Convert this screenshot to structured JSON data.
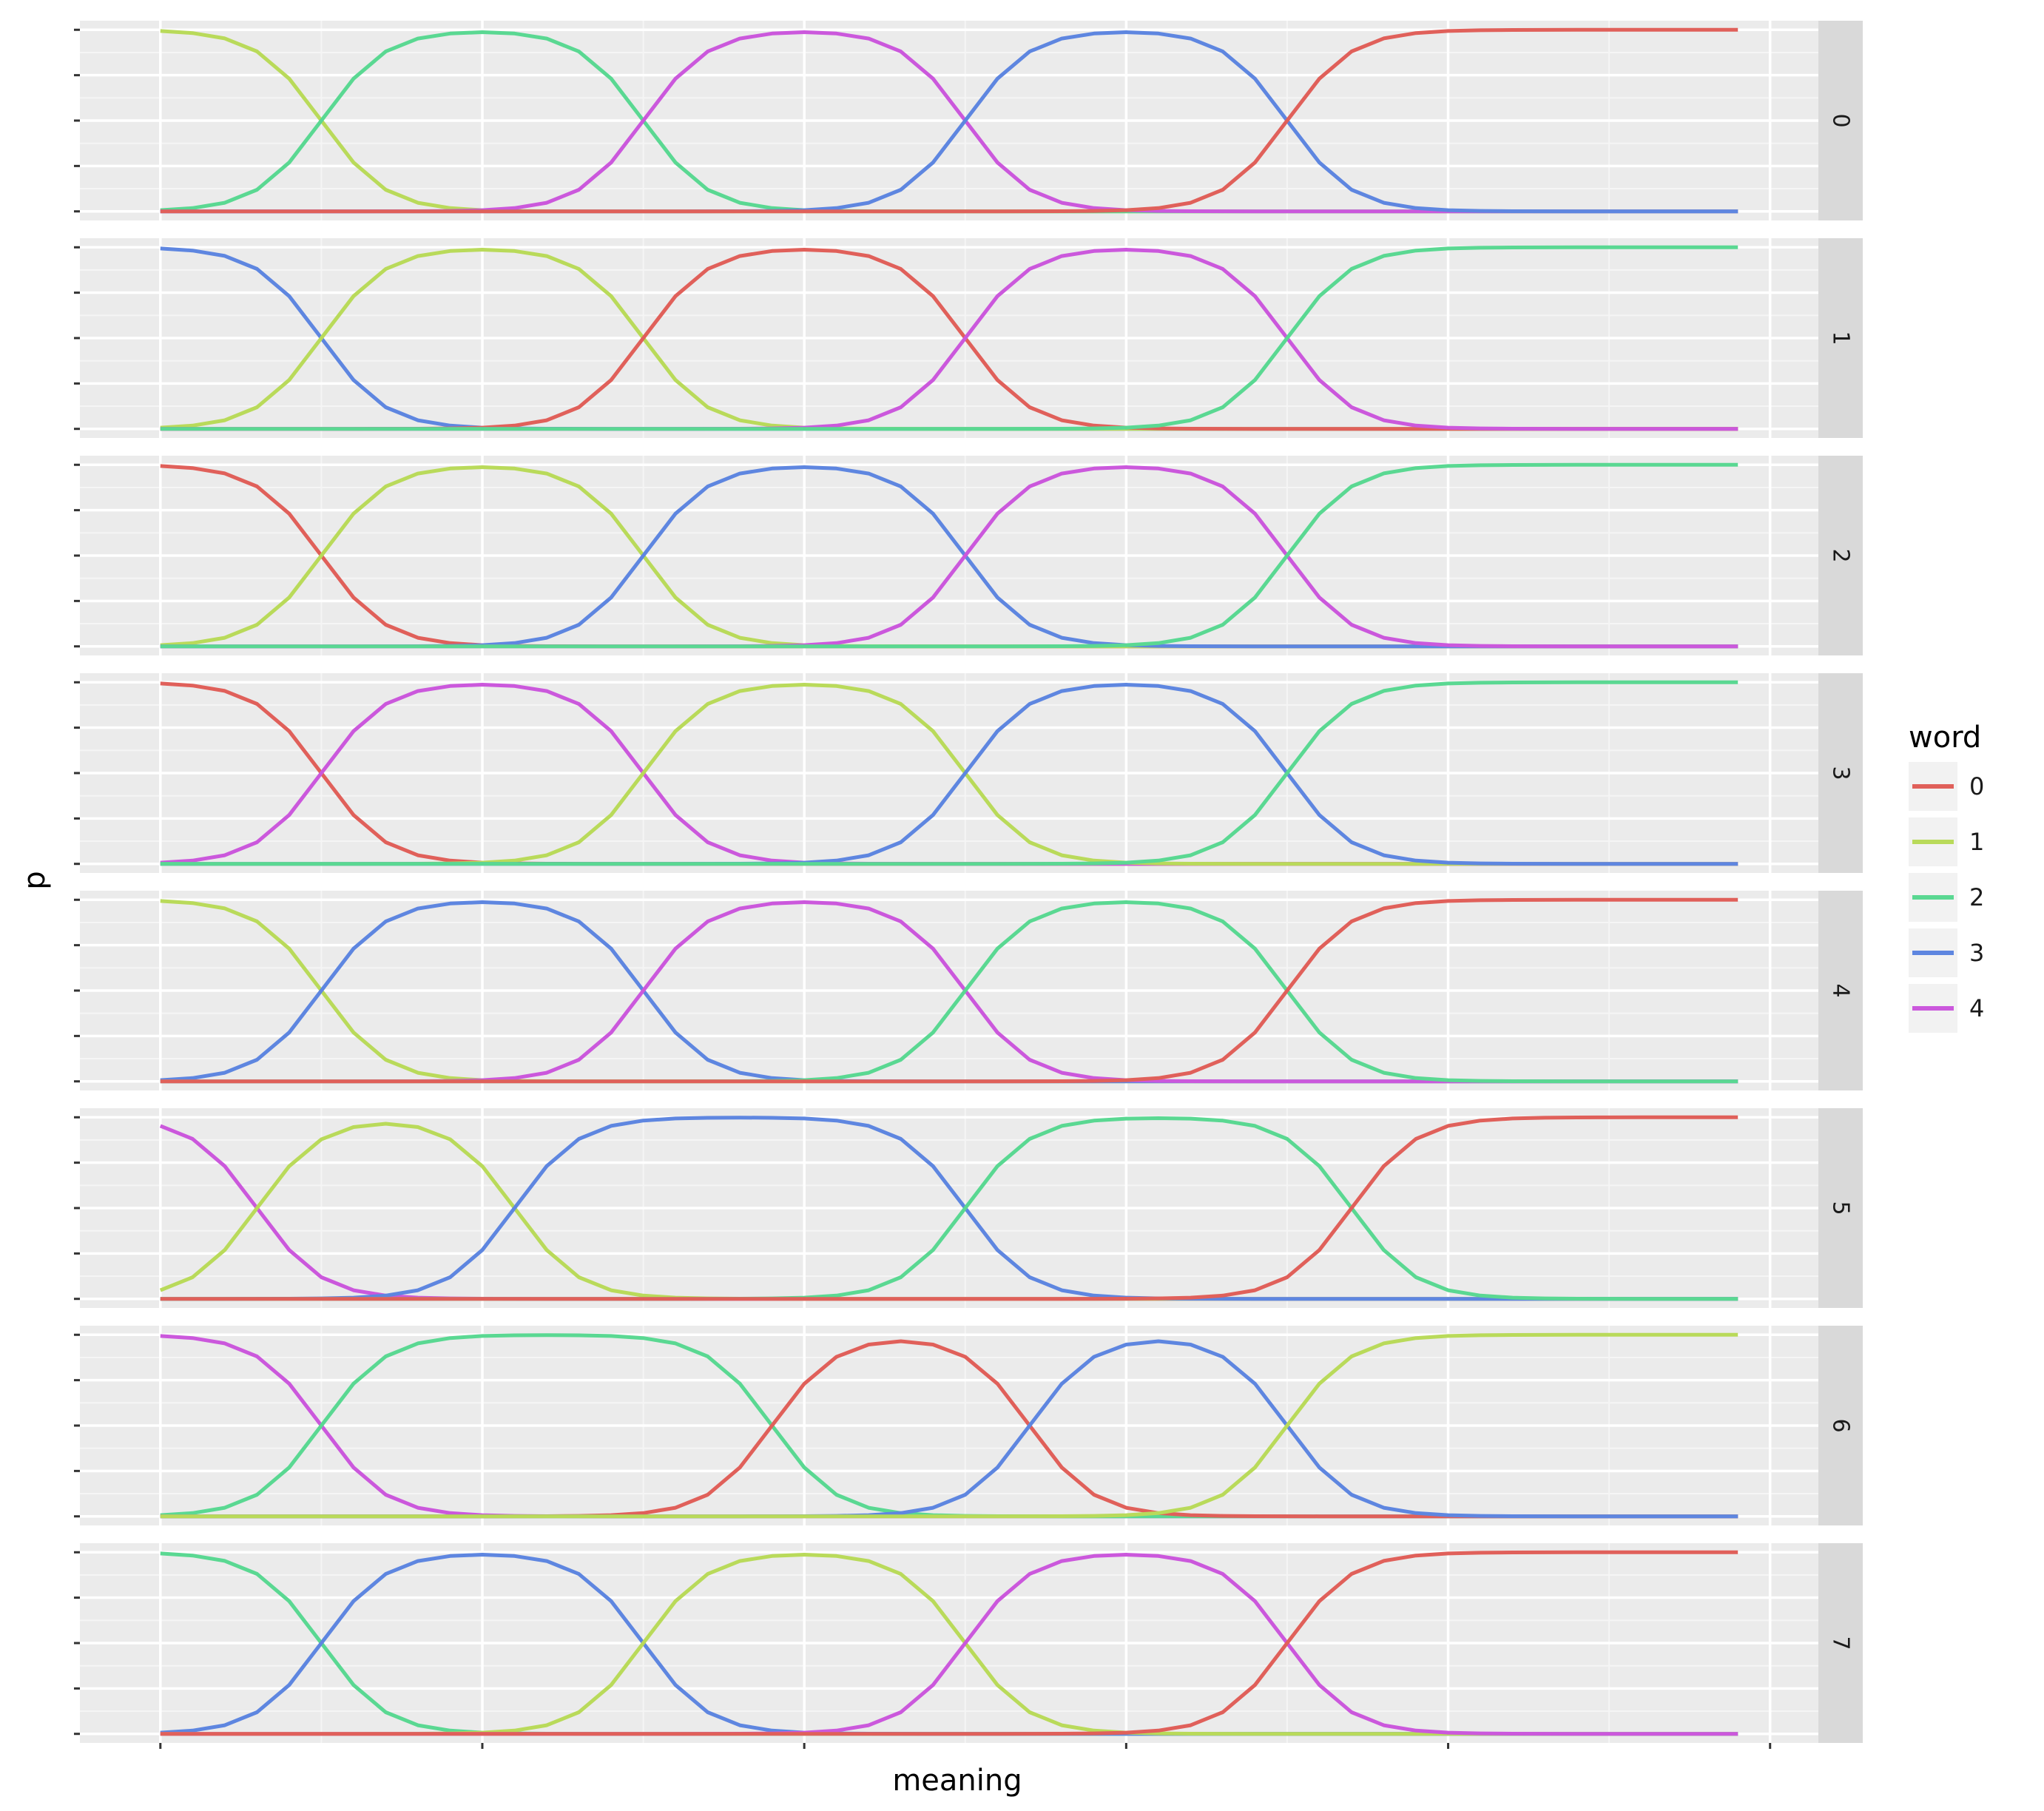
{
  "chart_data": {
    "type": "line",
    "xlabel": "meaning",
    "ylabel": "p",
    "facet_labels": [
      "0",
      "1",
      "2",
      "3",
      "4",
      "5",
      "6",
      "7"
    ],
    "legend": {
      "title": "word",
      "position": "right",
      "entries": [
        {
          "label": "0",
          "color": "#E0605A"
        },
        {
          "label": "1",
          "color": "#B9DA5A"
        },
        {
          "label": "2",
          "color": "#5AD892"
        },
        {
          "label": "3",
          "color": "#5E86E0"
        },
        {
          "label": "4",
          "color": "#CB58DC"
        }
      ]
    },
    "x": [
      0,
      1,
      2,
      3,
      4,
      5,
      6,
      7,
      8,
      9,
      10,
      11,
      12,
      13,
      14,
      15,
      16,
      17,
      18,
      19,
      20,
      21,
      22,
      23,
      24,
      25,
      26,
      27,
      28,
      29,
      30,
      31,
      32,
      33,
      34,
      35,
      36,
      37,
      38,
      39,
      40,
      41,
      42,
      43,
      44,
      45,
      46,
      47,
      48,
      49
    ],
    "xlim": [
      -2.5,
      51.5
    ],
    "ylim": [
      -0.05,
      1.05
    ],
    "grid": true,
    "panels": [
      {
        "facet": "0",
        "series": [
          {
            "word": "1",
            "segments": [
              {
                "from": 0,
                "to": 10,
                "rise": false
              }
            ]
          },
          {
            "word": "2",
            "segments": [
              {
                "from": 0,
                "to": 10,
                "rise": true
              },
              {
                "from": 10,
                "to": 20,
                "rise": false
              }
            ]
          },
          {
            "word": "4",
            "segments": [
              {
                "from": 10,
                "to": 20,
                "rise": true
              },
              {
                "from": 20,
                "to": 30,
                "rise": false
              }
            ]
          },
          {
            "word": "3",
            "segments": [
              {
                "from": 20,
                "to": 30,
                "rise": true
              },
              {
                "from": 30,
                "to": 40,
                "rise": false
              }
            ]
          },
          {
            "word": "0",
            "segments": [
              {
                "from": 30,
                "to": 40,
                "rise": true
              }
            ]
          }
        ]
      },
      {
        "facet": "1",
        "series": [
          {
            "word": "3",
            "segments": [
              {
                "from": 0,
                "to": 10,
                "rise": false
              }
            ]
          },
          {
            "word": "1",
            "segments": [
              {
                "from": 0,
                "to": 10,
                "rise": true
              },
              {
                "from": 10,
                "to": 20,
                "rise": false
              }
            ]
          },
          {
            "word": "0",
            "segments": [
              {
                "from": 10,
                "to": 20,
                "rise": true
              },
              {
                "from": 20,
                "to": 30,
                "rise": false
              }
            ]
          },
          {
            "word": "4",
            "segments": [
              {
                "from": 20,
                "to": 30,
                "rise": true
              },
              {
                "from": 30,
                "to": 40,
                "rise": false
              }
            ]
          },
          {
            "word": "2",
            "segments": [
              {
                "from": 30,
                "to": 40,
                "rise": true
              }
            ]
          }
        ]
      },
      {
        "facet": "2",
        "series": [
          {
            "word": "0",
            "segments": [
              {
                "from": 0,
                "to": 10,
                "rise": false
              }
            ]
          },
          {
            "word": "1",
            "segments": [
              {
                "from": 0,
                "to": 10,
                "rise": true
              },
              {
                "from": 10,
                "to": 20,
                "rise": false
              }
            ]
          },
          {
            "word": "3",
            "segments": [
              {
                "from": 10,
                "to": 20,
                "rise": true
              },
              {
                "from": 20,
                "to": 30,
                "rise": false
              }
            ]
          },
          {
            "word": "4",
            "segments": [
              {
                "from": 20,
                "to": 30,
                "rise": true
              },
              {
                "from": 30,
                "to": 40,
                "rise": false
              }
            ]
          },
          {
            "word": "2",
            "segments": [
              {
                "from": 30,
                "to": 40,
                "rise": true
              }
            ]
          }
        ]
      },
      {
        "facet": "3",
        "series": [
          {
            "word": "0",
            "segments": [
              {
                "from": 0,
                "to": 10,
                "rise": false
              }
            ]
          },
          {
            "word": "4",
            "segments": [
              {
                "from": 0,
                "to": 10,
                "rise": true
              },
              {
                "from": 10,
                "to": 20,
                "rise": false
              }
            ]
          },
          {
            "word": "1",
            "segments": [
              {
                "from": 10,
                "to": 20,
                "rise": true
              },
              {
                "from": 20,
                "to": 30,
                "rise": false
              }
            ]
          },
          {
            "word": "3",
            "segments": [
              {
                "from": 20,
                "to": 30,
                "rise": true
              },
              {
                "from": 30,
                "to": 40,
                "rise": false
              }
            ]
          },
          {
            "word": "2",
            "segments": [
              {
                "from": 30,
                "to": 40,
                "rise": true
              }
            ]
          }
        ]
      },
      {
        "facet": "4",
        "series": [
          {
            "word": "1",
            "segments": [
              {
                "from": 0,
                "to": 10,
                "rise": false
              }
            ]
          },
          {
            "word": "3",
            "segments": [
              {
                "from": 0,
                "to": 10,
                "rise": true
              },
              {
                "from": 10,
                "to": 20,
                "rise": false
              }
            ]
          },
          {
            "word": "4",
            "segments": [
              {
                "from": 10,
                "to": 20,
                "rise": true
              },
              {
                "from": 20,
                "to": 30,
                "rise": false
              }
            ]
          },
          {
            "word": "2",
            "segments": [
              {
                "from": 20,
                "to": 30,
                "rise": true
              },
              {
                "from": 30,
                "to": 40,
                "rise": false
              }
            ]
          },
          {
            "word": "0",
            "segments": [
              {
                "from": 30,
                "to": 40,
                "rise": true
              }
            ]
          }
        ]
      },
      {
        "facet": "5",
        "series": [
          {
            "word": "4",
            "segments": [
              {
                "from": -2,
                "to": 8,
                "rise": false
              }
            ]
          },
          {
            "word": "1",
            "segments": [
              {
                "from": -2,
                "to": 8,
                "rise": true
              },
              {
                "from": 6,
                "to": 16,
                "rise": false
              }
            ]
          },
          {
            "word": "3",
            "segments": [
              {
                "from": 6,
                "to": 16,
                "rise": true
              },
              {
                "from": 20,
                "to": 30,
                "rise": false
              }
            ]
          },
          {
            "word": "2",
            "segments": [
              {
                "from": 20,
                "to": 30,
                "rise": true
              },
              {
                "from": 32,
                "to": 42,
                "rise": false
              }
            ]
          },
          {
            "word": "0",
            "segments": [
              {
                "from": 32,
                "to": 42,
                "rise": true
              }
            ]
          }
        ]
      },
      {
        "facet": "6",
        "series": [
          {
            "word": "4",
            "segments": [
              {
                "from": 0,
                "to": 10,
                "rise": false
              }
            ]
          },
          {
            "word": "2",
            "segments": [
              {
                "from": 0,
                "to": 10,
                "rise": true
              },
              {
                "from": 14,
                "to": 24,
                "rise": false
              }
            ]
          },
          {
            "word": "0",
            "segments": [
              {
                "from": 14,
                "to": 24,
                "rise": true
              },
              {
                "from": 22,
                "to": 32,
                "rise": false
              }
            ]
          },
          {
            "word": "3",
            "segments": [
              {
                "from": 22,
                "to": 32,
                "rise": true
              },
              {
                "from": 30,
                "to": 40,
                "rise": false
              }
            ]
          },
          {
            "word": "1",
            "segments": [
              {
                "from": 30,
                "to": 40,
                "rise": true
              }
            ]
          }
        ]
      },
      {
        "facet": "7",
        "series": [
          {
            "word": "2",
            "segments": [
              {
                "from": 0,
                "to": 10,
                "rise": false
              }
            ]
          },
          {
            "word": "3",
            "segments": [
              {
                "from": 0,
                "to": 10,
                "rise": true
              },
              {
                "from": 10,
                "to": 20,
                "rise": false
              }
            ]
          },
          {
            "word": "1",
            "segments": [
              {
                "from": 10,
                "to": 20,
                "rise": true
              },
              {
                "from": 20,
                "to": 30,
                "rise": false
              }
            ]
          },
          {
            "word": "4",
            "segments": [
              {
                "from": 20,
                "to": 30,
                "rise": true
              },
              {
                "from": 30,
                "to": 40,
                "rise": false
              }
            ]
          },
          {
            "word": "0",
            "segments": [
              {
                "from": 30,
                "to": 40,
                "rise": true
              }
            ]
          }
        ]
      }
    ]
  }
}
